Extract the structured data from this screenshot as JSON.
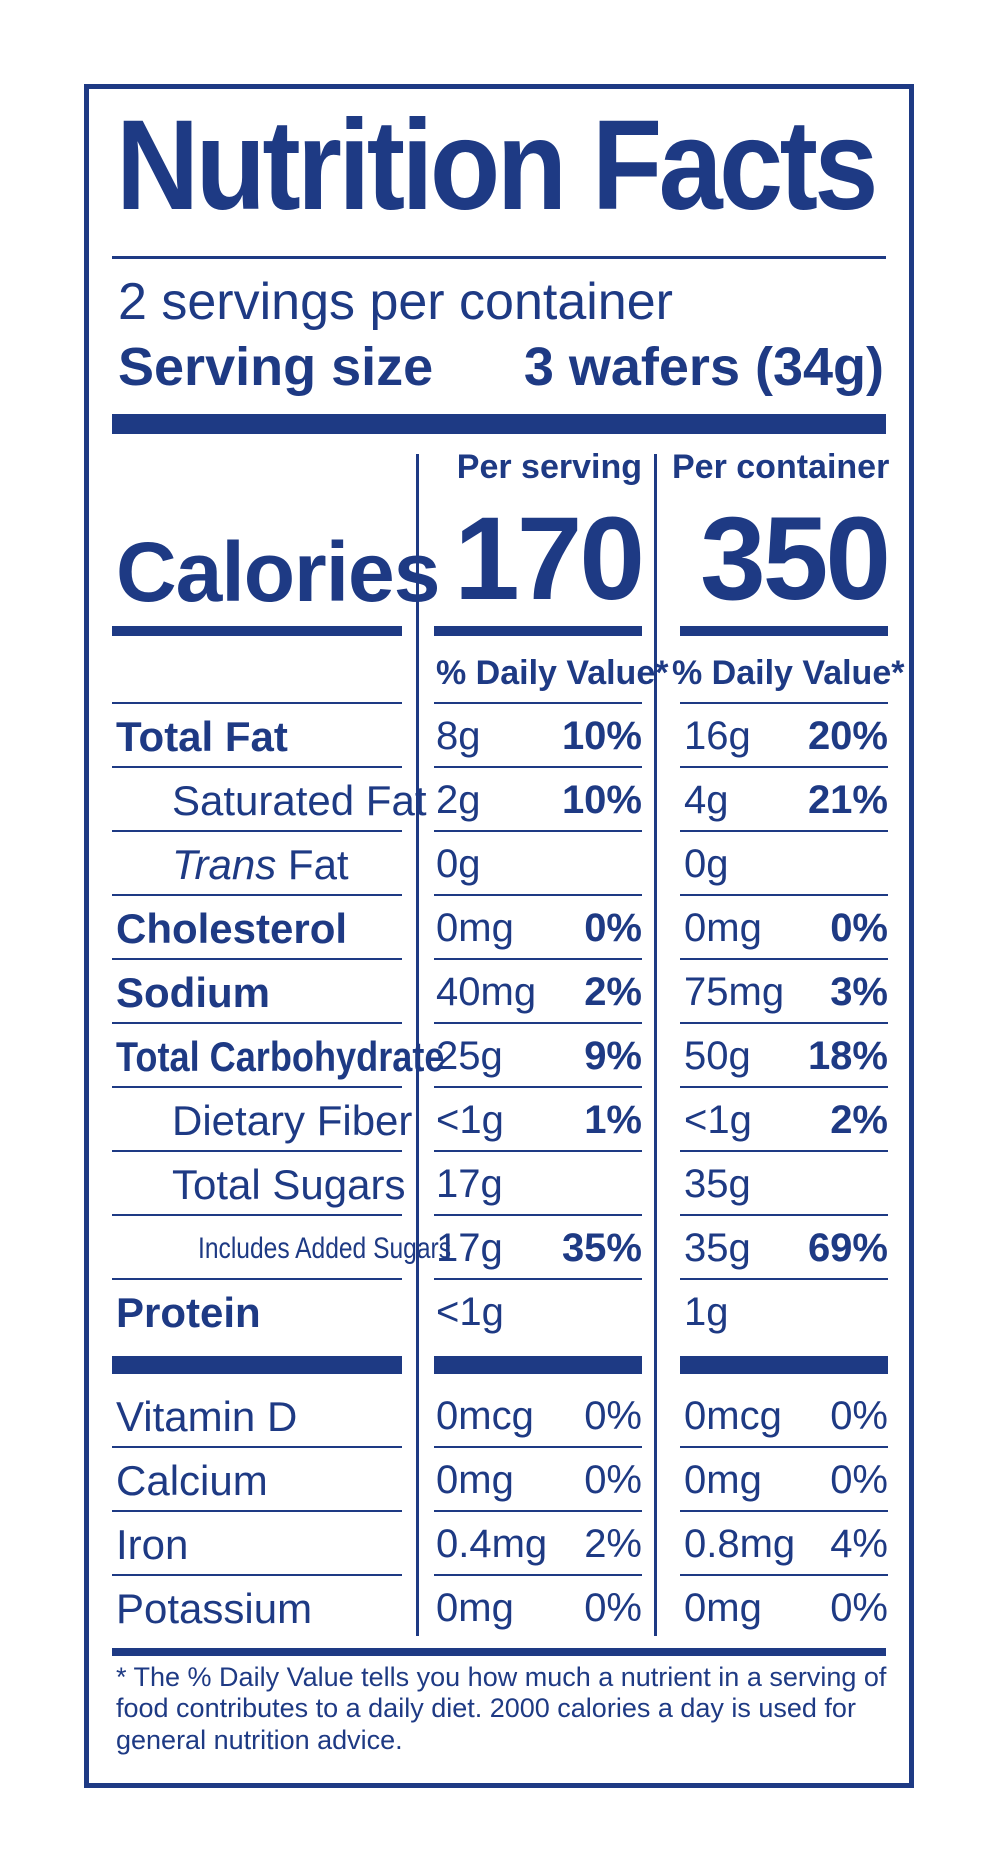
{
  "title": "Nutrition Facts",
  "servings_per_container": "2 servings per container",
  "serving_size_label": "Serving size",
  "serving_size_value": "3 wafers (34g)",
  "columns": {
    "per_serving": "Per serving",
    "per_container": "Per container"
  },
  "calories": {
    "label": "Calories",
    "per_serving": "170",
    "per_container": "350"
  },
  "daily_value_header": "% Daily Value*",
  "nutrients": [
    {
      "label": "Total Fat",
      "serving_amount": "8g",
      "serving_dv": "10%",
      "container_amount": "16g",
      "container_dv": "20%"
    },
    {
      "label": "Saturated Fat",
      "serving_amount": "2g",
      "serving_dv": "10%",
      "container_amount": "4g",
      "container_dv": "21%"
    },
    {
      "label_italic": "Trans",
      "label_rest": " Fat",
      "serving_amount": "0g",
      "serving_dv": "",
      "container_amount": "0g",
      "container_dv": ""
    },
    {
      "label": "Cholesterol",
      "serving_amount": "0mg",
      "serving_dv": "0%",
      "container_amount": "0mg",
      "container_dv": "0%"
    },
    {
      "label": "Sodium",
      "serving_amount": "40mg",
      "serving_dv": "2%",
      "container_amount": "75mg",
      "container_dv": "3%"
    },
    {
      "label": "Total Carbohydrate",
      "serving_amount": "25g",
      "serving_dv": "9%",
      "container_amount": "50g",
      "container_dv": "18%"
    },
    {
      "label": "Dietary Fiber",
      "serving_amount": "<1g",
      "serving_dv": "1%",
      "container_amount": "<1g",
      "container_dv": "2%"
    },
    {
      "label": "Total Sugars",
      "serving_amount": "17g",
      "serving_dv": "",
      "container_amount": "35g",
      "container_dv": ""
    },
    {
      "label": "Includes Added Sugars",
      "serving_amount": "17g",
      "serving_dv": "35%",
      "container_amount": "35g",
      "container_dv": "69%"
    },
    {
      "label": "Protein",
      "serving_amount": "<1g",
      "serving_dv": "",
      "container_amount": "1g",
      "container_dv": ""
    }
  ],
  "vitamins": [
    {
      "label": "Vitamin D",
      "serving_amount": "0mcg",
      "serving_dv": "0%",
      "container_amount": "0mcg",
      "container_dv": "0%"
    },
    {
      "label": "Calcium",
      "serving_amount": "0mg",
      "serving_dv": "0%",
      "container_amount": "0mg",
      "container_dv": "0%"
    },
    {
      "label": "Iron",
      "serving_amount": "0.4mg",
      "serving_dv": "2%",
      "container_amount": "0.8mg",
      "container_dv": "4%"
    },
    {
      "label": "Potassium",
      "serving_amount": "0mg",
      "serving_dv": "0%",
      "container_amount": "0mg",
      "container_dv": "0%"
    }
  ],
  "footnote": "* The % Daily Value tells you how much a nutrient in a serving of food contributes to a daily diet. 2000 calories a day is used for general nutrition advice.",
  "colors": {
    "ink": "#1e3a84",
    "background": "#ffffff"
  }
}
